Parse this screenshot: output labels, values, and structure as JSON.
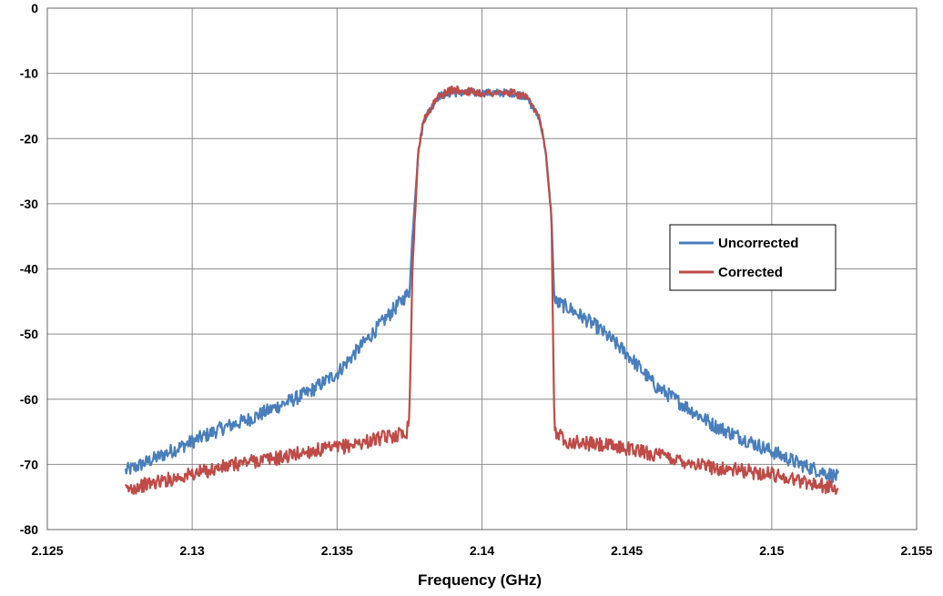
{
  "chart_data": {
    "type": "line",
    "title": "",
    "xlabel": "Frequency (GHz)",
    "ylabel": "",
    "xlim": [
      2.125,
      2.155
    ],
    "ylim": [
      -80,
      0
    ],
    "x_ticks": [
      "2.125",
      "2.13",
      "2.135",
      "2.14",
      "2.145",
      "2.15",
      "2.155"
    ],
    "y_ticks": [
      "0",
      "-10",
      "-20",
      "-30",
      "-40",
      "-50",
      "-60",
      "-70",
      "-80"
    ],
    "grid": true,
    "legend_position": "right",
    "series": [
      {
        "name": "Uncorrected",
        "color": "#4a7ebb",
        "x": [
          2.1277,
          2.128,
          2.129,
          2.13,
          2.131,
          2.132,
          2.133,
          2.134,
          2.135,
          2.136,
          2.137,
          2.1375,
          2.1376,
          2.1378,
          2.138,
          2.1385,
          2.139,
          2.14,
          2.141,
          2.1415,
          2.142,
          2.1422,
          2.1424,
          2.1425,
          2.143,
          2.144,
          2.145,
          2.146,
          2.147,
          2.148,
          2.149,
          2.15,
          2.151,
          2.152,
          2.1523
        ],
        "y": [
          -71,
          -70.5,
          -68.5,
          -66.5,
          -64.5,
          -63,
          -61,
          -59,
          -56,
          -51,
          -46,
          -43.5,
          -35,
          -22,
          -17,
          -13.5,
          -13,
          -13,
          -13,
          -13.5,
          -17,
          -22,
          -32,
          -45,
          -46,
          -49,
          -53,
          -58,
          -61,
          -64,
          -66,
          -68,
          -70,
          -71.5,
          -72
        ]
      },
      {
        "name": "Corrected",
        "color": "#be4b48",
        "x": [
          2.1277,
          2.128,
          2.129,
          2.13,
          2.131,
          2.132,
          2.133,
          2.134,
          2.135,
          2.136,
          2.137,
          2.1374,
          2.1375,
          2.1376,
          2.1378,
          2.138,
          2.1385,
          2.139,
          2.14,
          2.141,
          2.1415,
          2.142,
          2.1422,
          2.1424,
          2.1425,
          2.143,
          2.144,
          2.145,
          2.146,
          2.147,
          2.148,
          2.149,
          2.15,
          2.151,
          2.152,
          2.1523
        ],
        "y": [
          -74,
          -73.5,
          -72.5,
          -71.5,
          -70.5,
          -69.5,
          -69,
          -68,
          -67.5,
          -66.5,
          -65.5,
          -65,
          -62,
          -40,
          -22,
          -17,
          -13.5,
          -12.5,
          -13,
          -13,
          -13.5,
          -17,
          -22,
          -32,
          -65,
          -66.5,
          -67,
          -67.5,
          -68.5,
          -69.5,
          -70.5,
          -71,
          -71.5,
          -72.5,
          -73.5,
          -74
        ]
      }
    ]
  }
}
